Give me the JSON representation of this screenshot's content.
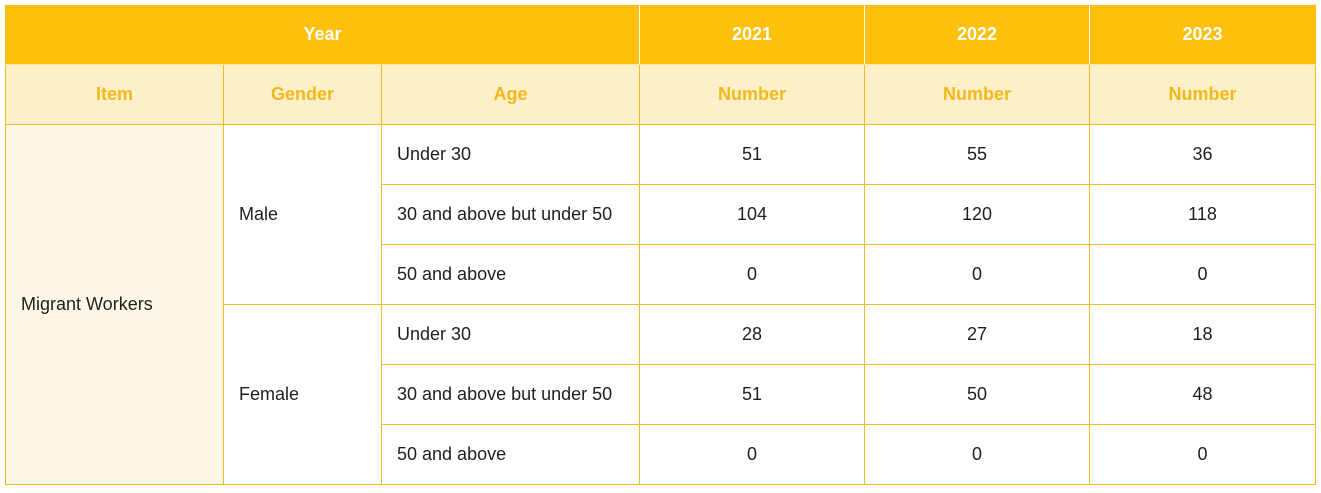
{
  "header": {
    "year_label": "Year",
    "years": [
      "2021",
      "2022",
      "2023"
    ]
  },
  "subheader": {
    "item": "Item",
    "gender": "Gender",
    "age": "Age",
    "number": [
      "Number",
      "Number",
      "Number"
    ]
  },
  "item_label": "Migrant Workers",
  "groups": [
    {
      "gender": "Male",
      "rows": [
        {
          "age": "Under 30",
          "values": [
            "51",
            "55",
            "36"
          ]
        },
        {
          "age": "30 and above but under 50",
          "values": [
            "104",
            "120",
            "118"
          ]
        },
        {
          "age": "50 and above",
          "values": [
            "0",
            "0",
            "0"
          ]
        }
      ]
    },
    {
      "gender": "Female",
      "rows": [
        {
          "age": "Under 30",
          "values": [
            "28",
            "27",
            "18"
          ]
        },
        {
          "age": "30 and above but under 50",
          "values": [
            "51",
            "50",
            "48"
          ]
        },
        {
          "age": "50 and above",
          "values": [
            "0",
            "0",
            "0"
          ]
        }
      ]
    }
  ],
  "colors": {
    "header_bg": "#fdc00d",
    "subheader_bg": "#fdf0c8",
    "subheader_text": "#f5b81a",
    "border": "#f5bd1f"
  }
}
